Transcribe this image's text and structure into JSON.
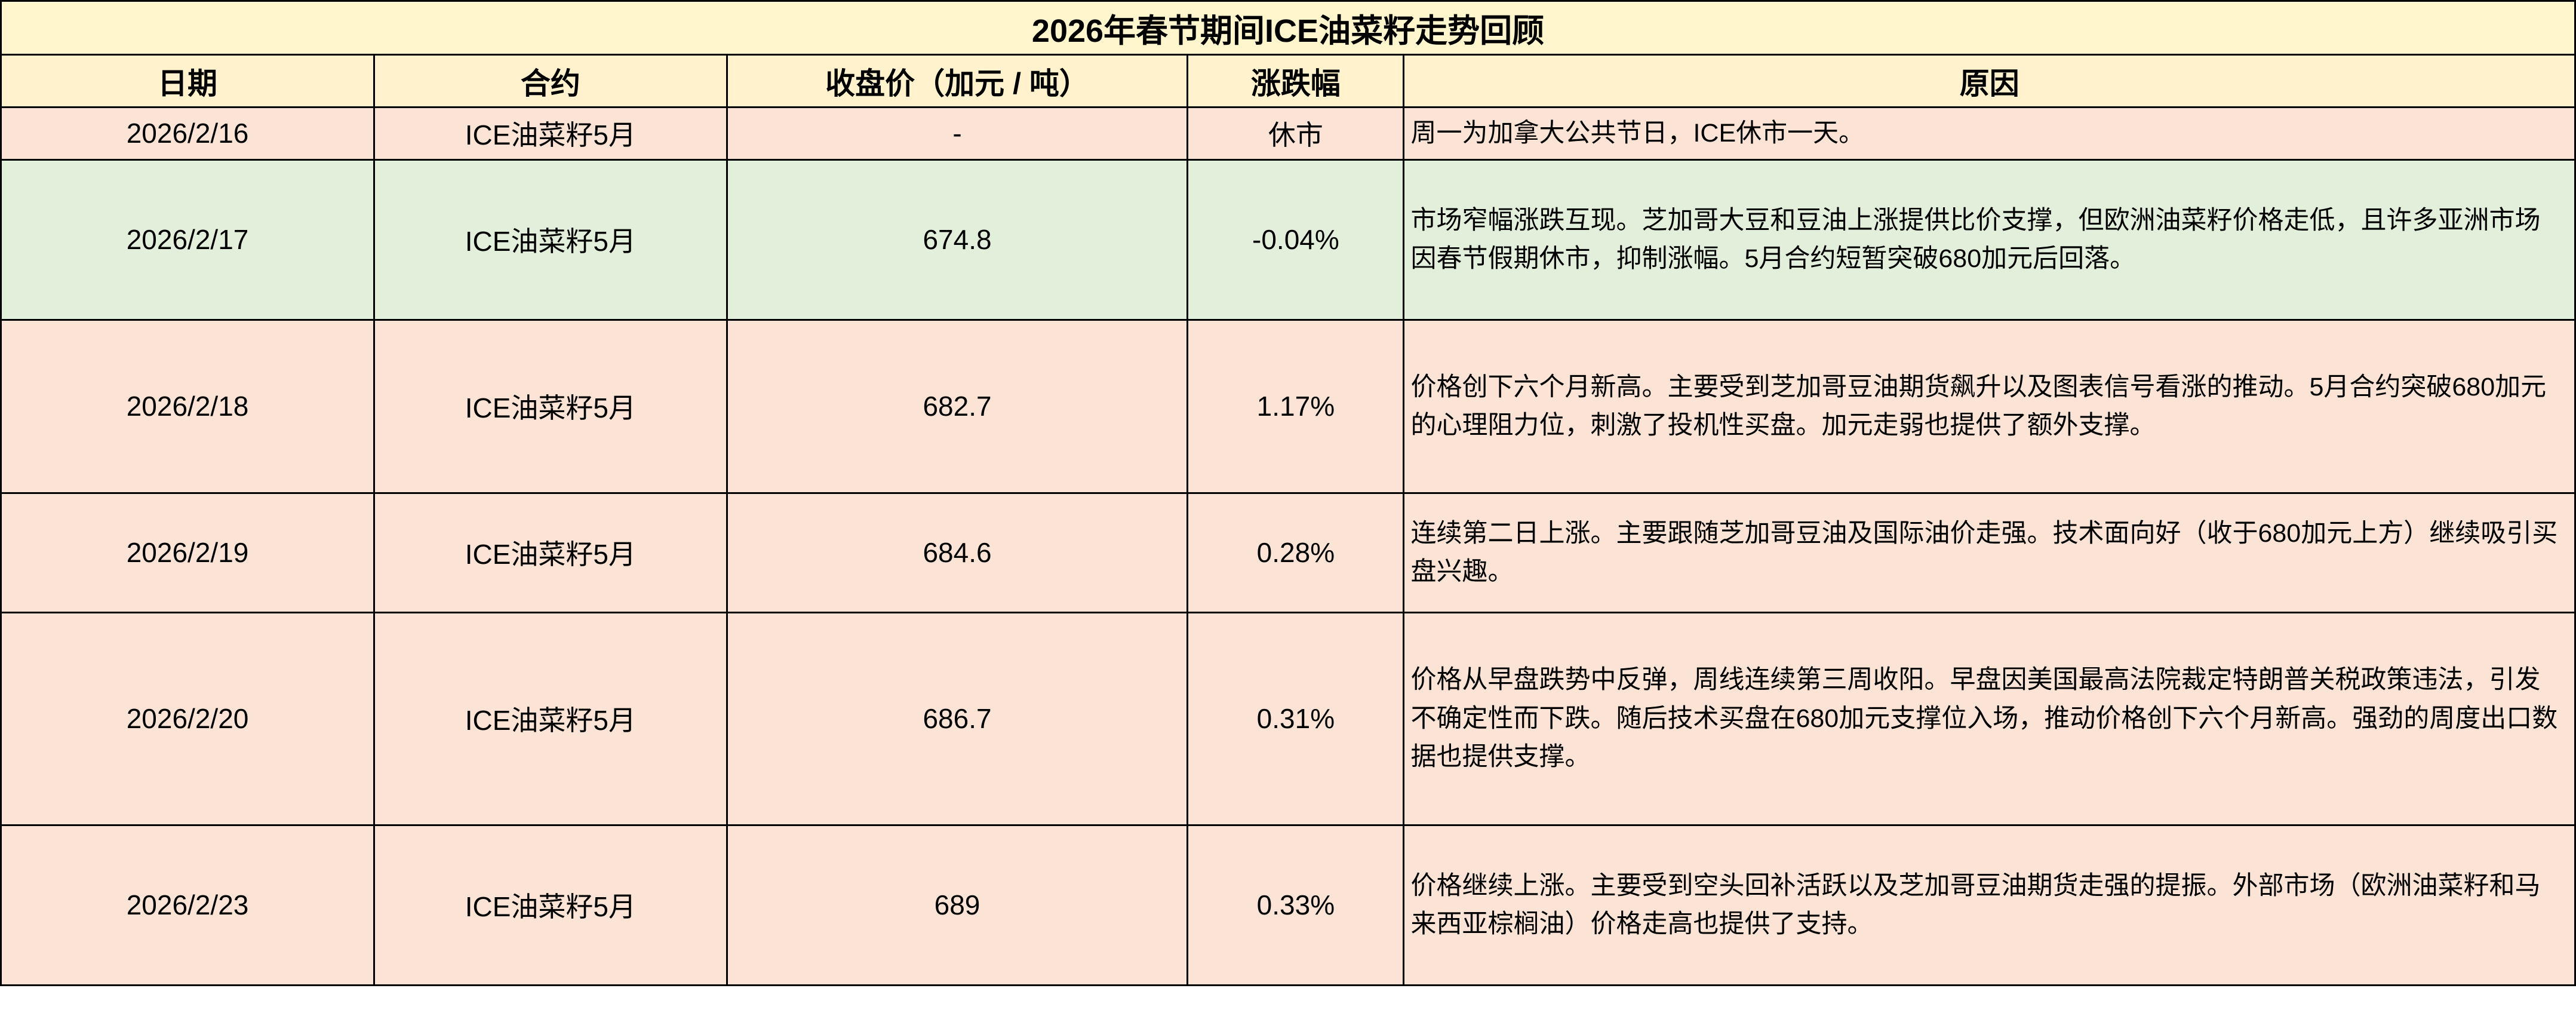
{
  "title": "2026年春节期间ICE油菜籽走势回顾",
  "columns": [
    "日期",
    "合约",
    "收盘价（加元 / 吨）",
    "涨跌幅",
    "原因"
  ],
  "rows": [
    {
      "date": "2026/2/16",
      "contract": "ICE油菜籽5月",
      "close": "-",
      "change": "休市",
      "reason": "周一为加拿大公共节日，ICE休市一天。"
    },
    {
      "date": "2026/2/17",
      "contract": "ICE油菜籽5月",
      "close": "674.8",
      "change": "-0.04%",
      "reason": "市场窄幅涨跌互现。芝加哥大豆和豆油上涨提供比价支撑，但欧洲油菜籽价格走低，且许多亚洲市场因春节假期休市，抑制涨幅。5月合约短暂突破680加元后回落。"
    },
    {
      "date": "2026/2/18",
      "contract": "ICE油菜籽5月",
      "close": "682.7",
      "change": "1.17%",
      "reason": "价格创下六个月新高。主要受到芝加哥豆油期货飙升以及图表信号看涨的推动。5月合约突破680加元的心理阻力位，刺激了投机性买盘。加元走弱也提供了额外支撑。"
    },
    {
      "date": "2026/2/19",
      "contract": "ICE油菜籽5月",
      "close": "684.6",
      "change": "0.28%",
      "reason": "连续第二日上涨。主要跟随芝加哥豆油及国际油价走强。技术面向好（收于680加元上方）继续吸引买盘兴趣。"
    },
    {
      "date": "2026/2/20",
      "contract": "ICE油菜籽5月",
      "close": "686.7",
      "change": "0.31%",
      "reason": "价格从早盘跌势中反弹，周线连续第三周收阳。早盘因美国最高法院裁定特朗普关税政策违法，引发不确定性而下跌。随后技术买盘在680加元支撑位入场，推动价格创下六个月新高。强劲的周度出口数据也提供支撑。"
    },
    {
      "date": "2026/2/23",
      "contract": "ICE油菜籽5月",
      "close": "689",
      "change": "0.33%",
      "reason": "价格继续上涨。主要受到空头回补活跃以及芝加哥豆油期货走强的提振。外部市场（欧洲油菜籽和马来西亚棕榈油）价格走高也提供了支持。"
    }
  ],
  "colors": {
    "title_bg": "#FFF6CE",
    "header_bg": "#FFF2CC",
    "row_bg": "#FBE3D5",
    "highlight_row_bg": "#E2EFDA",
    "border": "#000000",
    "text": "#000000"
  }
}
